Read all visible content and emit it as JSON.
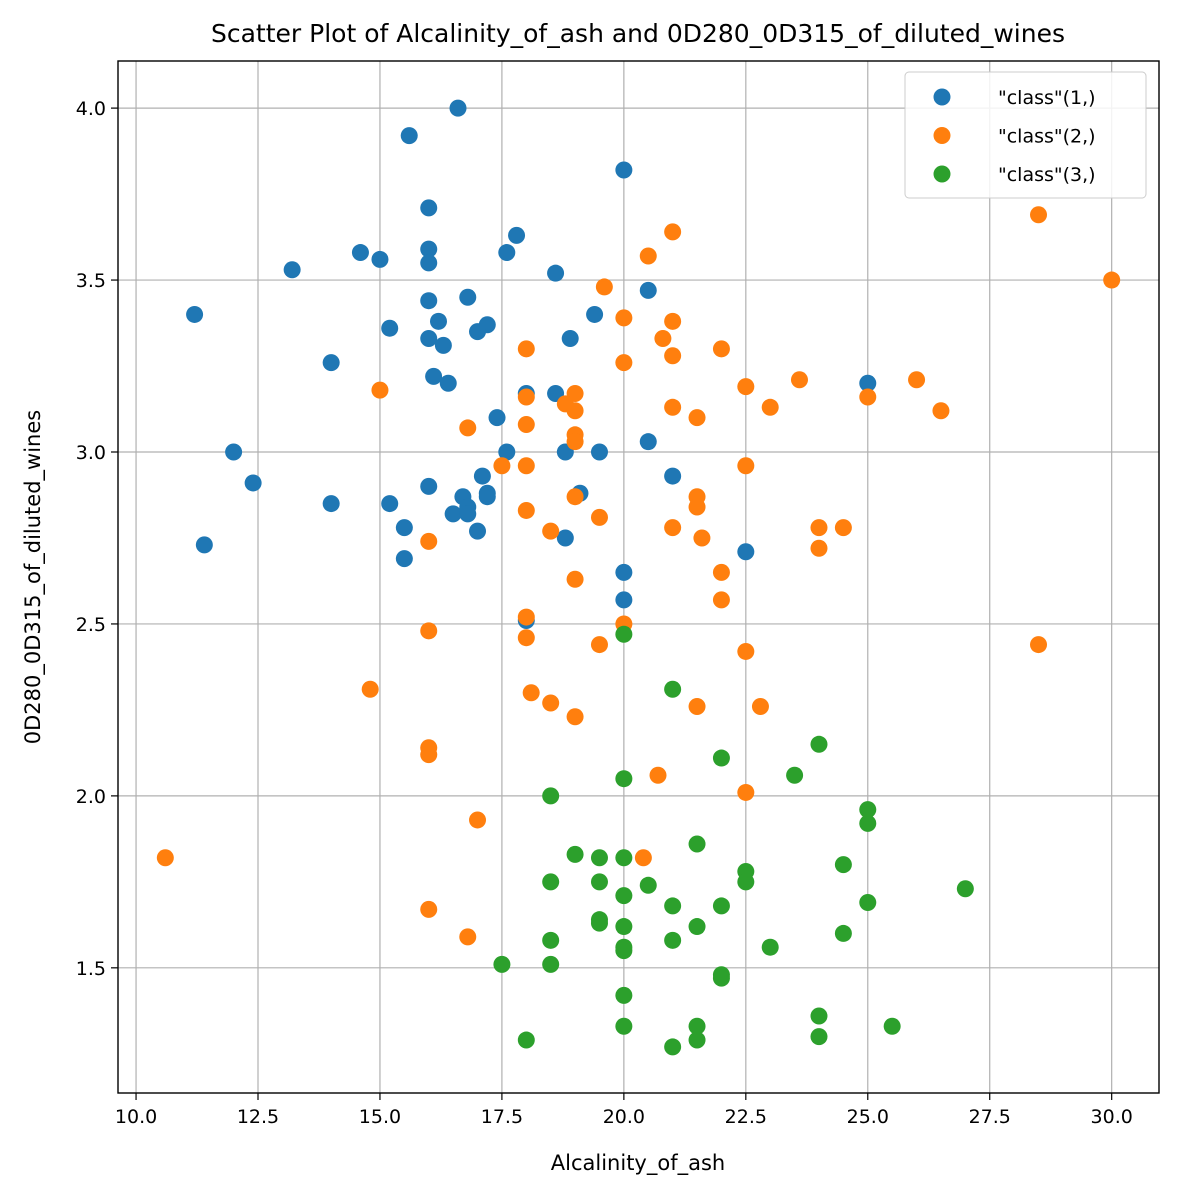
{
  "chart_data": {
    "type": "scatter",
    "title": "Scatter Plot of Alcalinity_of_ash and 0D280_0D315_of_diluted_wines",
    "xlabel": "Alcalinity_of_ash",
    "ylabel": "0D280_0D315_of_diluted_wines",
    "xlim": [
      9.63,
      30.97
    ],
    "ylim": [
      1.136,
      4.137
    ],
    "x_ticks": [
      "10.0",
      "12.5",
      "15.0",
      "17.5",
      "20.0",
      "22.5",
      "25.0",
      "27.5",
      "30.0"
    ],
    "y_ticks": [
      "1.5",
      "2.0",
      "2.5",
      "3.0",
      "3.5",
      "4.0"
    ],
    "grid": true,
    "legend_position": "top-right",
    "series": [
      {
        "name": "\"class\"(1,)",
        "color": "#1f77b4",
        "points": [
          [
            16.6,
            4.0
          ],
          [
            15.6,
            3.92
          ],
          [
            20.0,
            3.82
          ],
          [
            16.0,
            3.71
          ],
          [
            17.8,
            3.63
          ],
          [
            14.6,
            3.58
          ],
          [
            17.6,
            3.58
          ],
          [
            16.0,
            3.59
          ],
          [
            15.0,
            3.56
          ],
          [
            16.0,
            3.55
          ],
          [
            13.2,
            3.53
          ],
          [
            18.6,
            3.52
          ],
          [
            20.5,
            3.47
          ],
          [
            16.8,
            3.45
          ],
          [
            16.0,
            3.44
          ],
          [
            19.4,
            3.4
          ],
          [
            11.2,
            3.4
          ],
          [
            16.2,
            3.38
          ],
          [
            17.2,
            3.37
          ],
          [
            15.2,
            3.36
          ],
          [
            17.0,
            3.35
          ],
          [
            16.0,
            3.33
          ],
          [
            18.9,
            3.33
          ],
          [
            16.3,
            3.31
          ],
          [
            14.0,
            3.26
          ],
          [
            16.1,
            3.22
          ],
          [
            16.4,
            3.2
          ],
          [
            25.0,
            3.2
          ],
          [
            18.0,
            3.17
          ],
          [
            18.6,
            3.17
          ],
          [
            17.4,
            3.1
          ],
          [
            20.5,
            3.03
          ],
          [
            12.0,
            3.0
          ],
          [
            17.6,
            3.0
          ],
          [
            18.8,
            3.0
          ],
          [
            19.5,
            3.0
          ],
          [
            21.0,
            2.93
          ],
          [
            17.1,
            2.93
          ],
          [
            12.4,
            2.91
          ],
          [
            16.0,
            2.9
          ],
          [
            17.2,
            2.87
          ],
          [
            17.2,
            2.88
          ],
          [
            19.1,
            2.88
          ],
          [
            16.7,
            2.87
          ],
          [
            14.0,
            2.85
          ],
          [
            15.2,
            2.85
          ],
          [
            16.8,
            2.84
          ],
          [
            16.5,
            2.82
          ],
          [
            16.8,
            2.82
          ],
          [
            15.5,
            2.78
          ],
          [
            17.0,
            2.77
          ],
          [
            18.8,
            2.75
          ],
          [
            11.4,
            2.73
          ],
          [
            22.5,
            2.71
          ],
          [
            15.5,
            2.69
          ],
          [
            20.0,
            2.65
          ],
          [
            20.0,
            2.57
          ],
          [
            18.0,
            2.51
          ]
        ]
      },
      {
        "name": "\"class\"(2,)",
        "color": "#ff7f0e",
        "points": [
          [
            28.5,
            3.69
          ],
          [
            21.0,
            3.64
          ],
          [
            20.5,
            3.57
          ],
          [
            30.0,
            3.5
          ],
          [
            19.6,
            3.48
          ],
          [
            20.0,
            3.39
          ],
          [
            21.0,
            3.38
          ],
          [
            20.8,
            3.33
          ],
          [
            18.0,
            3.3
          ],
          [
            22.0,
            3.3
          ],
          [
            21.0,
            3.28
          ],
          [
            20.0,
            3.26
          ],
          [
            23.6,
            3.21
          ],
          [
            26.0,
            3.21
          ],
          [
            15.0,
            3.18
          ],
          [
            22.5,
            3.19
          ],
          [
            19.0,
            3.17
          ],
          [
            18.0,
            3.16
          ],
          [
            25.0,
            3.16
          ],
          [
            18.8,
            3.14
          ],
          [
            21.0,
            3.13
          ],
          [
            23.0,
            3.13
          ],
          [
            19.0,
            3.12
          ],
          [
            26.5,
            3.12
          ],
          [
            21.5,
            3.1
          ],
          [
            18.0,
            3.08
          ],
          [
            16.8,
            3.07
          ],
          [
            19.0,
            3.05
          ],
          [
            19.0,
            3.03
          ],
          [
            17.5,
            2.96
          ],
          [
            18.0,
            2.96
          ],
          [
            22.5,
            2.96
          ],
          [
            19.0,
            2.87
          ],
          [
            21.5,
            2.87
          ],
          [
            21.5,
            2.84
          ],
          [
            18.0,
            2.83
          ],
          [
            19.5,
            2.81
          ],
          [
            21.0,
            2.78
          ],
          [
            24.0,
            2.78
          ],
          [
            24.5,
            2.78
          ],
          [
            18.5,
            2.77
          ],
          [
            21.6,
            2.75
          ],
          [
            16.0,
            2.74
          ],
          [
            24.0,
            2.72
          ],
          [
            22.0,
            2.65
          ],
          [
            19.0,
            2.63
          ],
          [
            22.0,
            2.57
          ],
          [
            18.0,
            2.52
          ],
          [
            20.0,
            2.5
          ],
          [
            16.0,
            2.48
          ],
          [
            18.0,
            2.46
          ],
          [
            19.5,
            2.44
          ],
          [
            28.5,
            2.44
          ],
          [
            22.5,
            2.42
          ],
          [
            14.8,
            2.31
          ],
          [
            18.1,
            2.3
          ],
          [
            18.5,
            2.27
          ],
          [
            21.5,
            2.26
          ],
          [
            22.8,
            2.26
          ],
          [
            19.0,
            2.23
          ],
          [
            16.0,
            2.14
          ],
          [
            16.0,
            2.12
          ],
          [
            20.7,
            2.06
          ],
          [
            22.5,
            2.01
          ],
          [
            17.0,
            1.93
          ],
          [
            10.6,
            1.82
          ],
          [
            20.4,
            1.82
          ],
          [
            16.0,
            1.67
          ],
          [
            16.8,
            1.59
          ]
        ]
      },
      {
        "name": "\"class\"(3,)",
        "color": "#2ca02c",
        "points": [
          [
            20.0,
            2.47
          ],
          [
            21.0,
            2.31
          ],
          [
            24.0,
            2.15
          ],
          [
            22.0,
            2.11
          ],
          [
            23.5,
            2.06
          ],
          [
            20.0,
            2.05
          ],
          [
            18.5,
            2.0
          ],
          [
            25.0,
            1.96
          ],
          [
            25.0,
            1.92
          ],
          [
            21.5,
            1.86
          ],
          [
            19.0,
            1.83
          ],
          [
            19.5,
            1.82
          ],
          [
            20.0,
            1.82
          ],
          [
            24.5,
            1.8
          ],
          [
            22.5,
            1.78
          ],
          [
            22.5,
            1.75
          ],
          [
            18.5,
            1.75
          ],
          [
            19.5,
            1.75
          ],
          [
            20.5,
            1.74
          ],
          [
            27.0,
            1.73
          ],
          [
            20.0,
            1.71
          ],
          [
            21.0,
            1.68
          ],
          [
            22.0,
            1.68
          ],
          [
            25.0,
            1.69
          ],
          [
            19.5,
            1.64
          ],
          [
            19.5,
            1.63
          ],
          [
            20.0,
            1.62
          ],
          [
            21.5,
            1.62
          ],
          [
            24.5,
            1.6
          ],
          [
            18.5,
            1.58
          ],
          [
            21.0,
            1.58
          ],
          [
            23.0,
            1.56
          ],
          [
            20.0,
            1.56
          ],
          [
            20.0,
            1.55
          ],
          [
            17.5,
            1.51
          ],
          [
            18.5,
            1.51
          ],
          [
            22.0,
            1.48
          ],
          [
            22.0,
            1.47
          ],
          [
            20.0,
            1.42
          ],
          [
            24.0,
            1.36
          ],
          [
            20.0,
            1.33
          ],
          [
            21.5,
            1.33
          ],
          [
            25.5,
            1.33
          ],
          [
            24.0,
            1.3
          ],
          [
            18.0,
            1.29
          ],
          [
            21.5,
            1.29
          ],
          [
            21.0,
            1.27
          ]
        ]
      }
    ]
  }
}
